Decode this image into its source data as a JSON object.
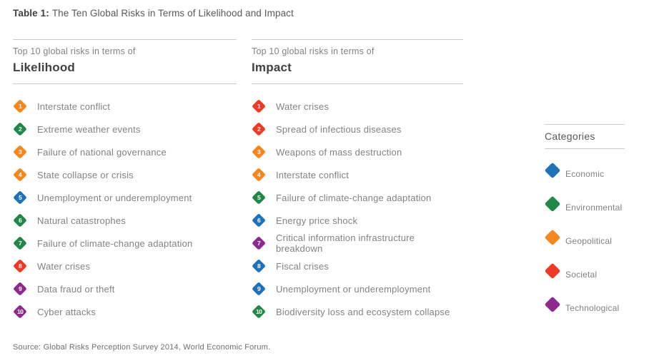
{
  "title": {
    "prefix": "Table 1:",
    "text": "The Ten Global Risks in Terms of Likelihood and Impact"
  },
  "category_colors": {
    "economic": "#1E72B8",
    "environmental": "#218847",
    "geopolitical": "#F6861F",
    "societal": "#EE3A24",
    "technological": "#8E2A8D"
  },
  "columns": [
    {
      "kicker": "Top 10 global risks in terms of",
      "heading": "Likelihood",
      "items": [
        {
          "rank": "1",
          "label": "Interstate conflict",
          "category": "geopolitical"
        },
        {
          "rank": "2",
          "label": "Extreme weather events",
          "category": "environmental"
        },
        {
          "rank": "3",
          "label": "Failure of national governance",
          "category": "geopolitical"
        },
        {
          "rank": "4",
          "label": "State collapse or crisis",
          "category": "geopolitical"
        },
        {
          "rank": "5",
          "label": "Unemployment or underemployment",
          "category": "economic"
        },
        {
          "rank": "6",
          "label": "Natural catastrophes",
          "category": "environmental"
        },
        {
          "rank": "7",
          "label": "Failure of climate-change adaptation",
          "category": "environmental"
        },
        {
          "rank": "8",
          "label": "Water crises",
          "category": "societal"
        },
        {
          "rank": "9",
          "label": "Data fraud or theft",
          "category": "technological"
        },
        {
          "rank": "10",
          "label": "Cyber attacks",
          "category": "technological"
        }
      ]
    },
    {
      "kicker": "Top 10 global risks in terms of",
      "heading": "Impact",
      "items": [
        {
          "rank": "1",
          "label": "Water crises",
          "category": "societal"
        },
        {
          "rank": "2",
          "label": "Spread of infectious diseases",
          "category": "societal"
        },
        {
          "rank": "3",
          "label": "Weapons of mass destruction",
          "category": "geopolitical"
        },
        {
          "rank": "4",
          "label": "Interstate conflict",
          "category": "geopolitical"
        },
        {
          "rank": "5",
          "label": "Failure of climate-change adaptation",
          "category": "environmental"
        },
        {
          "rank": "6",
          "label": "Energy price shock",
          "category": "economic"
        },
        {
          "rank": "7",
          "label": "Critical information infrastructure breakdown",
          "category": "technological"
        },
        {
          "rank": "8",
          "label": "Fiscal crises",
          "category": "economic"
        },
        {
          "rank": "9",
          "label": "Unemployment or underemployment",
          "category": "economic"
        },
        {
          "rank": "10",
          "label": "Biodiversity loss and ecosystem collapse",
          "category": "environmental"
        }
      ]
    }
  ],
  "legend": {
    "title": "Categories",
    "items": [
      {
        "label": "Economic",
        "category": "economic"
      },
      {
        "label": "Environmental",
        "category": "environmental"
      },
      {
        "label": "Geopolitical",
        "category": "geopolitical"
      },
      {
        "label": "Societal",
        "category": "societal"
      },
      {
        "label": "Technological",
        "category": "technological"
      }
    ]
  },
  "source": "Source: Global Risks Perception Survey 2014, World Economic Forum."
}
